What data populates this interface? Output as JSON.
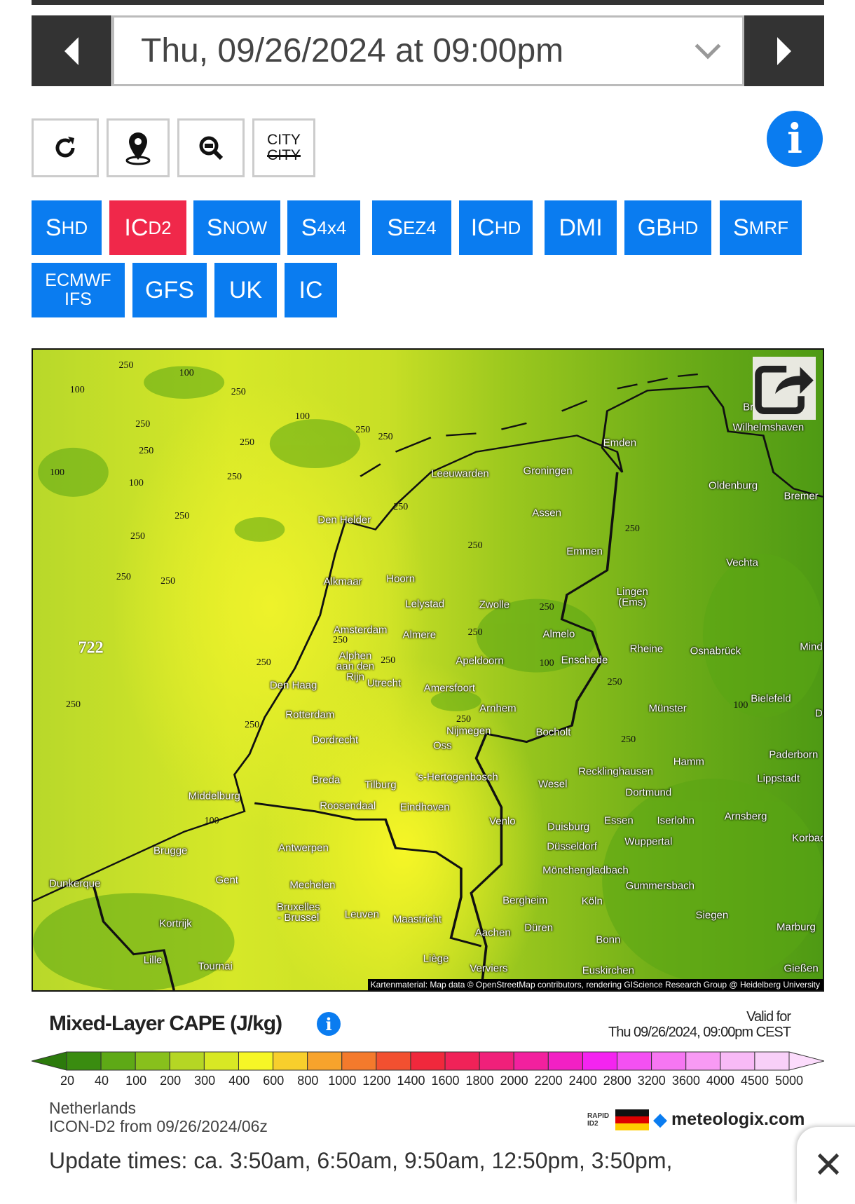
{
  "header": {
    "date_value": "Thu, 09/26/2024 at 09:00pm"
  },
  "toolbar": {
    "city_on": "CITY",
    "city_off": "CITY",
    "info": "i"
  },
  "models": [
    {
      "main": "S",
      "sub": "HD",
      "active": false
    },
    {
      "main": "IC",
      "sub": "D2",
      "active": true
    },
    {
      "main": "S",
      "sub": "NOW",
      "active": false
    },
    {
      "main": "S",
      "sub": "4x4",
      "active": false
    },
    {
      "main": "S",
      "sub": "EZ4",
      "active": false
    },
    {
      "main": "IC",
      "sub": "HD",
      "active": false
    },
    {
      "main": "DMI",
      "sub": "",
      "active": false
    },
    {
      "main": "GB",
      "sub": "HD",
      "active": false
    },
    {
      "main": "S",
      "sub": "MRF",
      "active": false
    },
    {
      "main": "ECMWF",
      "sub": "IFS",
      "active": false
    },
    {
      "main": "GFS",
      "sub": "",
      "active": false
    },
    {
      "main": "UK",
      "sub": "",
      "active": false
    },
    {
      "main": "IC",
      "sub": "",
      "active": false
    }
  ],
  "map": {
    "cities": [
      "Wilhelmshaven",
      "Emden",
      "Leeuwarden",
      "Groningen",
      "Oldenburg",
      "Bremer",
      "Assen",
      "Den Helder",
      "Emmen",
      "Vechta",
      "Alkmaar",
      "Hoorn",
      "Lingen\n(Ems)",
      "Lelystad",
      "Zwolle",
      "Amsterdam",
      "Almere",
      "Almelo",
      "Rheine",
      "Osnabrück",
      "Mind",
      "Alphen\naan den\nRijn",
      "Apeldoorn",
      "Enschede",
      "Den Haag",
      "Utrecht",
      "Amersfoort",
      "Bielefeld",
      "Münster",
      "Arnhem",
      "Rotterdam",
      "Nijmegen",
      "Bocholt",
      "Dordrecht",
      "Oss",
      "Paderborn",
      "Hamm",
      "Recklinghausen",
      "'s-Hertogenbosch",
      "Lippstadt",
      "Breda",
      "Tilburg",
      "Wesel",
      "Middelburg",
      "Dortmund",
      "Roosendaal",
      "Eindhoven",
      "Arnsberg",
      "Venlo",
      "Essen",
      "Iserlohn",
      "Duisburg",
      "Korbac",
      "Wuppertal",
      "Antwerpen",
      "Brugge",
      "Düsseldorf",
      "Mönchengladbach",
      "Dunkerque",
      "Gent",
      "Mechelen",
      "Gummersbach",
      "Bergheim",
      "Köln",
      "Bruxelles\n- Brussel",
      "Leuven",
      "Siegen",
      "Maastricht",
      "Kortrijk",
      "Marburg",
      "Düren",
      "Aachen",
      "Bonn",
      "Lille",
      "Liège",
      "Tournai",
      "Verviers",
      "Euskirchen",
      "Gießen",
      "Br",
      "D"
    ],
    "contour_labels": [
      "250",
      "100",
      "100",
      "250",
      "250",
      "100",
      "250",
      "250",
      "250",
      "250",
      "100",
      "100",
      "250",
      "250",
      "250",
      "250",
      "250",
      "722",
      "250",
      "250",
      "250",
      "250",
      "250",
      "250",
      "250",
      "250",
      "100",
      "250",
      "250",
      "250",
      "100",
      "250",
      "250",
      "100"
    ],
    "credit": "Kartenmaterial: Map data © OpenStreetMap contributors, rendering GIScience Research Group @ Heidelberg University"
  },
  "legend": {
    "title": "Mixed-Layer CAPE (J/kg)",
    "valid_label": "Valid for",
    "valid_time": "Thu 09/26/2024, 09:00pm CEST",
    "ticks": [
      "20",
      "40",
      "100",
      "200",
      "300",
      "400",
      "600",
      "800",
      "1000",
      "1200",
      "1400",
      "1600",
      "1800",
      "2000",
      "2200",
      "2400",
      "2800",
      "3200",
      "3600",
      "4000",
      "4500",
      "5000"
    ],
    "colors": [
      "#3a8c10",
      "#5ea916",
      "#88c01c",
      "#b5d624",
      "#d8e824",
      "#f6f626",
      "#f8cf2c",
      "#f7a32c",
      "#f47a2c",
      "#f25030",
      "#f0283c",
      "#f02258",
      "#f0207a",
      "#f2209e",
      "#f220c4",
      "#f424f0",
      "#f450f2",
      "#f676f2",
      "#f89af4",
      "#f8baf6",
      "#f8d0f8"
    ],
    "arrow_low": "#2c7a0c",
    "arrow_high": "#fcdcfc"
  },
  "footer": {
    "region": "Netherlands",
    "run": "ICON-D2 from 09/26/2024/06z",
    "rapid_label": "RAPID ID2",
    "brand": "meteologix.com",
    "update_times": "Update times: ca. 3:50am, 6:50am, 9:50am, 12:50pm, 3:50pm,",
    "close": "✕"
  },
  "colors": {
    "accent": "#0a7cf0",
    "active": "#f0284a",
    "dark": "#333333"
  }
}
